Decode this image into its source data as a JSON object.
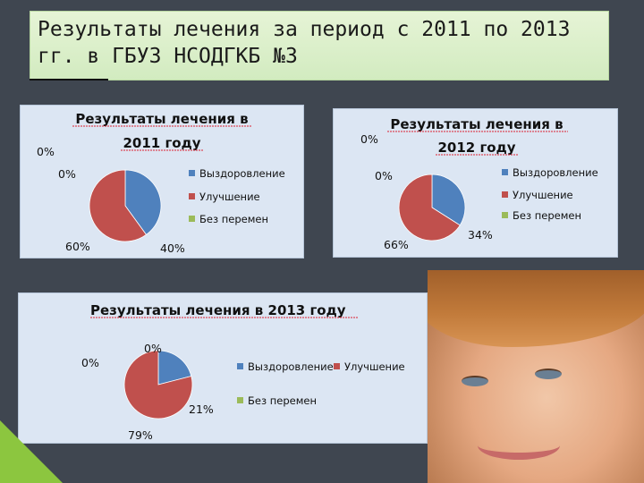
{
  "slide_title": "Результаты лечения за период с 2011 по 2013 гг. в ГБУЗ НСОДГКБ №3",
  "chart_data": [
    {
      "type": "pie",
      "title": "Результаты лечения в 2011 году",
      "categories": [
        "Выздоровление",
        "Улучшение",
        "Без перемен"
      ],
      "values": [
        40,
        60,
        0
      ],
      "value_labels": [
        "40%",
        "60%",
        "0%"
      ],
      "extra_zero_label": "0%",
      "colors": [
        "#4f81bd",
        "#c0504d",
        "#9bbb59"
      ],
      "legend_placement": "right"
    },
    {
      "type": "pie",
      "title": "Результаты лечения в 2012 году",
      "categories": [
        "Выздоровление",
        "Улучшение",
        "Без перемен"
      ],
      "values": [
        34,
        66,
        0
      ],
      "value_labels": [
        "34%",
        "66%",
        "0%"
      ],
      "extra_zero_label": "0%",
      "colors": [
        "#4f81bd",
        "#c0504d",
        "#9bbb59"
      ],
      "legend_placement": "right"
    },
    {
      "type": "pie",
      "title": "Результаты лечения в 2013 году",
      "categories": [
        "Выздоровление",
        "Улучшение",
        "Без перемен"
      ],
      "values": [
        21,
        79,
        0
      ],
      "value_labels": [
        "21%",
        "79%",
        "0%"
      ],
      "extra_zero_label": "0%",
      "colors": [
        "#4f81bd",
        "#c0504d",
        "#9bbb59"
      ],
      "legend_placement": "right"
    }
  ],
  "photo": {
    "icon": "child-face-photo"
  },
  "accent_color": "#8cc63f"
}
